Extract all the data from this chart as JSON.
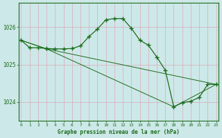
{
  "xlabel": "Graphe pression niveau de la mer (hPa)",
  "background_color": "#cde8e8",
  "line_color": "#1a6b1a",
  "grid_color_v": "#c8b8c8",
  "grid_color_h": "#c8b8c8",
  "x_ticks": [
    0,
    1,
    2,
    3,
    4,
    5,
    6,
    7,
    8,
    9,
    10,
    11,
    12,
    13,
    14,
    15,
    16,
    17,
    18,
    19,
    20,
    21,
    22,
    23
  ],
  "ylim": [
    1023.5,
    1026.65
  ],
  "yticks": [
    1024,
    1025,
    1026
  ],
  "series1_x": [
    0,
    1,
    2,
    3,
    4,
    5,
    6,
    7,
    8,
    9,
    10,
    11,
    12,
    13,
    14,
    15,
    16,
    17,
    18,
    19,
    20,
    21,
    22,
    23
  ],
  "series1_y": [
    1025.65,
    1025.45,
    1025.45,
    1025.43,
    1025.42,
    1025.42,
    1025.43,
    1025.5,
    1025.75,
    1025.95,
    1026.2,
    1026.23,
    1026.23,
    1025.97,
    1025.65,
    1025.52,
    1025.2,
    1024.85,
    1023.87,
    1023.98,
    1024.02,
    1024.12,
    1024.47,
    1024.47
  ],
  "series2_x": [
    0,
    3,
    23
  ],
  "series2_y": [
    1025.65,
    1025.42,
    1024.47
  ],
  "series3_x": [
    0,
    3,
    18,
    23
  ],
  "series3_y": [
    1025.65,
    1025.42,
    1023.87,
    1024.47
  ]
}
